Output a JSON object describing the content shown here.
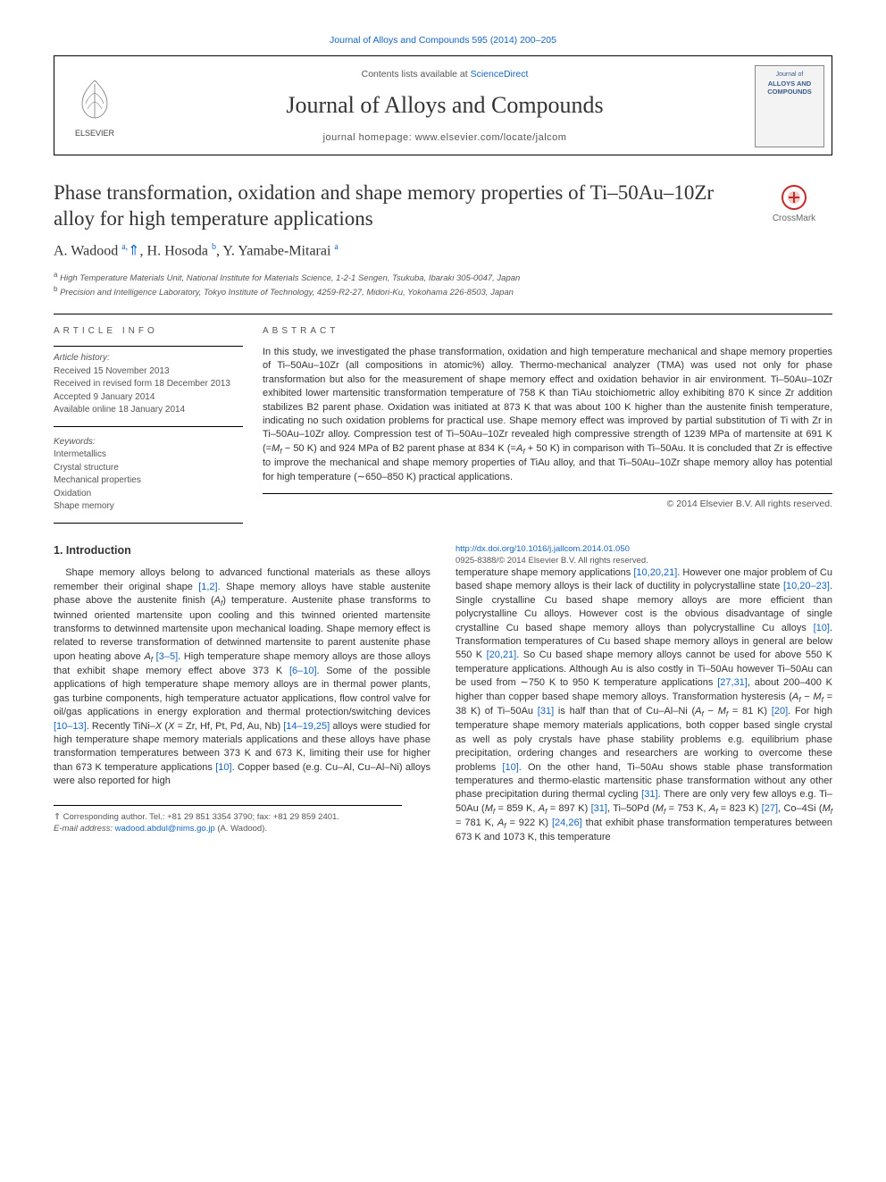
{
  "journal": {
    "citation_text": "Journal of Alloys and Compounds 595 (2014) 200–205",
    "contents_prefix": "Contents lists available at ",
    "contents_link": "ScienceDirect",
    "name": "Journal of Alloys and Compounds",
    "homepage_label": "journal homepage: ",
    "homepage_url": "www.elsevier.com/locate/jalcom",
    "publisher": "ELSEVIER",
    "cover_small": "Journal of",
    "cover_title": "ALLOYS AND COMPOUNDS"
  },
  "crossmark": "CrossMark",
  "paper": {
    "title": "Phase transformation, oxidation and shape memory properties of Ti–50Au–10Zr alloy for high temperature applications",
    "authors_html": "A. Wadood <sup class='sup'>a,</sup><span class='ast'>⇑</span>, H. Hosoda <sup class='sup'>b</sup>, Y. Yamabe-Mitarai <sup class='sup'>a</sup>",
    "affiliations": [
      {
        "marker": "a",
        "text": "High Temperature Materials Unit, National Institute for Materials Science, 1-2-1 Sengen, Tsukuba, Ibaraki 305-0047, Japan"
      },
      {
        "marker": "b",
        "text": "Precision and Intelligence Laboratory, Tokyo Institute of Technology, 4259-R2-27, Midori-Ku, Yokohama 226-8503, Japan"
      }
    ]
  },
  "article_info": {
    "label": "ARTICLE INFO",
    "history_head": "Article history:",
    "history": [
      "Received 15 November 2013",
      "Received in revised form 18 December 2013",
      "Accepted 9 January 2014",
      "Available online 18 January 2014"
    ],
    "keywords_head": "Keywords:",
    "keywords": [
      "Intermetallics",
      "Crystal structure",
      "Mechanical properties",
      "Oxidation",
      "Shape memory"
    ]
  },
  "abstract": {
    "label": "ABSTRACT",
    "text": "In this study, we investigated the phase transformation, oxidation and high temperature mechanical and shape memory properties of Ti–50Au–10Zr (all compositions in atomic%) alloy. Thermo-mechanical analyzer (TMA) was used not only for phase transformation but also for the measurement of shape memory effect and oxidation behavior in air environment. Ti–50Au–10Zr exhibited lower martensitic transformation temperature of 758 K than TiAu stoichiometric alloy exhibiting 870 K since Zr addition stabilizes B2 parent phase. Oxidation was initiated at 873 K that was about 100 K higher than the austenite finish temperature, indicating no such oxidation problems for practical use. Shape memory effect was improved by partial substitution of Ti with Zr in Ti–50Au–10Zr alloy. Compression test of Ti–50Au–10Zr revealed high compressive strength of 1239 MPa of martensite at 691 K (=Mf − 50 K) and 924 MPa of B2 parent phase at 834 K (=Af + 50 K) in comparison with Ti–50Au. It is concluded that Zr is effective to improve the mechanical and shape memory properties of TiAu alloy, and that Ti–50Au–10Zr shape memory alloy has potential for high temperature (∼650–850 K) practical applications.",
    "copyright": "© 2014 Elsevier B.V. All rights reserved."
  },
  "intro": {
    "heading": "1. Introduction",
    "col1": "Shape memory alloys belong to advanced functional materials as these alloys remember their original shape [1,2]. Shape memory alloys have stable austenite phase above the austenite finish (Af) temperature. Austenite phase transforms to twinned oriented martensite upon cooling and this twinned oriented martensite transforms to detwinned martensite upon mechanical loading. Shape memory effect is related to reverse transformation of detwinned martensite to parent austenite phase upon heating above Af [3–5]. High temperature shape memory alloys are those alloys that exhibit shape memory effect above 373 K [6–10]. Some of the possible applications of high temperature shape memory alloys are in thermal power plants, gas turbine components, high temperature actuator applications, flow control valve for oil/gas applications in energy exploration and thermal protection/switching devices [10–13]. Recently TiNi–X (X = Zr, Hf, Pt, Pd, Au, Nb) [14–19,25] alloys were studied for high temperature shape memory materials applications and these alloys have phase transformation temperatures between 373 K and 673 K, limiting their use for higher than 673 K temperature applications [10]. Copper based (e.g. Cu–Al, Cu–Al–Ni) alloys were also reported for high",
    "col2": "temperature shape memory applications [10,20,21]. However one major problem of Cu based shape memory alloys is their lack of ductility in polycrystalline state [10,20–23]. Single crystalline Cu based shape memory alloys are more efficient than polycrystalline Cu alloys. However cost is the obvious disadvantage of single crystalline Cu based shape memory alloys than polycrystalline Cu alloys [10]. Transformation temperatures of Cu based shape memory alloys in general are below 550 K [20,21]. So Cu based shape memory alloys cannot be used for above 550 K temperature applications. Although Au is also costly in Ti–50Au however Ti–50Au can be used from ∼750 K to 950 K temperature applications [27,31], about 200–400 K higher than copper based shape memory alloys. Transformation hysteresis (Af − Mf = 38 K) of Ti–50Au [31] is half than that of Cu–Al–Ni (Af − Mf = 81 K) [20]. For high temperature shape memory materials applications, both copper based single crystal as well as poly crystals have phase stability problems e.g. equilibrium phase precipitation, ordering changes and researchers are working to overcome these problems [10]. On the other hand, Ti–50Au shows stable phase transformation temperatures and thermo-elastic martensitic phase transformation without any other phase precipitation during thermal cycling [31]. There are only very few alloys e.g. Ti–50Au (Mf = 859 K, Af = 897 K) [31], Ti–50Pd (Mf = 753 K, Af = 823 K) [27], Co–4Si (Mf = 781 K, Af = 922 K) [24,26] that exhibit phase transformation temperatures between 673 K and 1073 K, this temperature",
    "refs_col1": [
      "[1,2]",
      "[3–5]",
      "[6–10]",
      "[10–13]",
      "[14–19,25]",
      "[10]"
    ],
    "refs_col2": [
      "[10,20,21]",
      "[10,20–23]",
      "[10]",
      "[20,21]",
      "[27,31]",
      "[31]",
      "[20]",
      "[10]",
      "[31]",
      "[31]",
      "[27]",
      "[24,26]"
    ]
  },
  "footer": {
    "corresponding": "⇑ Corresponding author. Tel.: +81 29 851 3354 3790; fax: +81 29 859 2401.",
    "email_label": "E-mail address: ",
    "email": "wadood.abdul@nims.go.jp",
    "email_who": " (A. Wadood).",
    "doi": "http://dx.doi.org/10.1016/j.jallcom.2014.01.050",
    "issn": "0925-8388/© 2014 Elsevier B.V. All rights reserved."
  },
  "colors": {
    "link": "#1565c0",
    "text": "#333333",
    "muted": "#555555",
    "rule": "#000000"
  }
}
